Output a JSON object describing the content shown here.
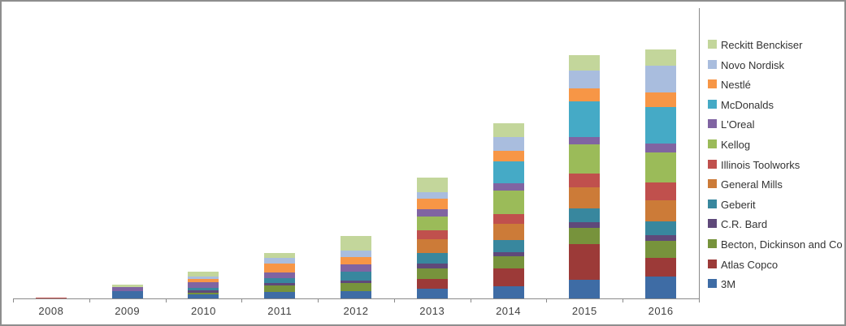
{
  "chart_data": {
    "type": "bar",
    "stacked": true,
    "title": "",
    "xlabel": "",
    "ylabel": "",
    "categories": [
      "2008",
      "2009",
      "2010",
      "2011",
      "2012",
      "2013",
      "2014",
      "2015",
      "2016"
    ],
    "series": [
      {
        "name": "3M",
        "color": "#3E6CA5",
        "values": [
          0,
          9,
          5,
          8,
          9,
          12,
          15,
          23,
          27
        ]
      },
      {
        "name": "Atlas Copco",
        "color": "#9C3A38",
        "values": [
          0,
          0,
          0,
          0,
          0,
          12,
          22,
          44,
          23
        ]
      },
      {
        "name": "Becton, Dickinson and Co",
        "color": "#77933C",
        "values": [
          0,
          0,
          2.5,
          8,
          10,
          13,
          15,
          20,
          21
        ]
      },
      {
        "name": "C.R. Bard",
        "color": "#5F497A",
        "values": [
          0,
          0,
          2.5,
          3,
          3.5,
          6,
          5,
          7,
          7
        ]
      },
      {
        "name": "Geberit",
        "color": "#38879E",
        "values": [
          0,
          0,
          3.5,
          6,
          11,
          13,
          15,
          17,
          17
        ]
      },
      {
        "name": "General Mills",
        "color": "#CC7B38",
        "values": [
          0,
          0,
          0,
          0,
          0,
          17,
          20,
          26,
          26
        ]
      },
      {
        "name": "Illinois Toolworks",
        "color": "#C0504D",
        "values": [
          1.5,
          0,
          0,
          0,
          0,
          11,
          12,
          17,
          22
        ]
      },
      {
        "name": "Kellog",
        "color": "#9BBB59",
        "values": [
          0,
          0,
          0,
          0,
          0,
          17,
          29,
          36,
          37
        ]
      },
      {
        "name": "L'Oreal",
        "color": "#8064A2",
        "values": [
          0,
          5,
          6.5,
          7,
          9,
          9,
          9,
          9,
          11
        ]
      },
      {
        "name": "McDonalds",
        "color": "#45AAC6",
        "values": [
          0,
          0,
          0,
          0,
          0,
          0,
          27,
          44,
          45
        ]
      },
      {
        "name": "Nestlé",
        "color": "#F79646",
        "values": [
          0,
          0,
          4,
          11,
          9,
          13,
          13,
          16,
          18
        ]
      },
      {
        "name": "Novo Nordisk",
        "color": "#A9BDDE",
        "values": [
          0,
          0,
          3.5,
          7,
          7.5,
          8,
          17,
          22,
          33
        ]
      },
      {
        "name": "Reckitt Benckiser",
        "color": "#C3D69B",
        "values": [
          0,
          3,
          6,
          6,
          18,
          18,
          17,
          19,
          20
        ]
      }
    ],
    "legend_position": "right",
    "legend_order_top_to_bottom": [
      "Reckitt Benckiser",
      "Novo Nordisk",
      "Nestlé",
      "McDonalds",
      "L'Oreal",
      "Kellog",
      "Illinois Toolworks",
      "General Mills",
      "Geberit",
      "C.R. Bard",
      "Becton, Dickinson and Co",
      "Atlas Copco",
      "3M"
    ],
    "grid": false,
    "y_axis_visible": false,
    "note": "No y-axis labels in the image; series values are estimated relative magnitudes (1 unit = 1 px of bar height)."
  },
  "layout_colors": {
    "axis": "#8A8A8A",
    "x_label_text": "#404040",
    "legend_text": "#333333",
    "outer_border": "#8E8E8E",
    "background": "#FFFFFF"
  }
}
